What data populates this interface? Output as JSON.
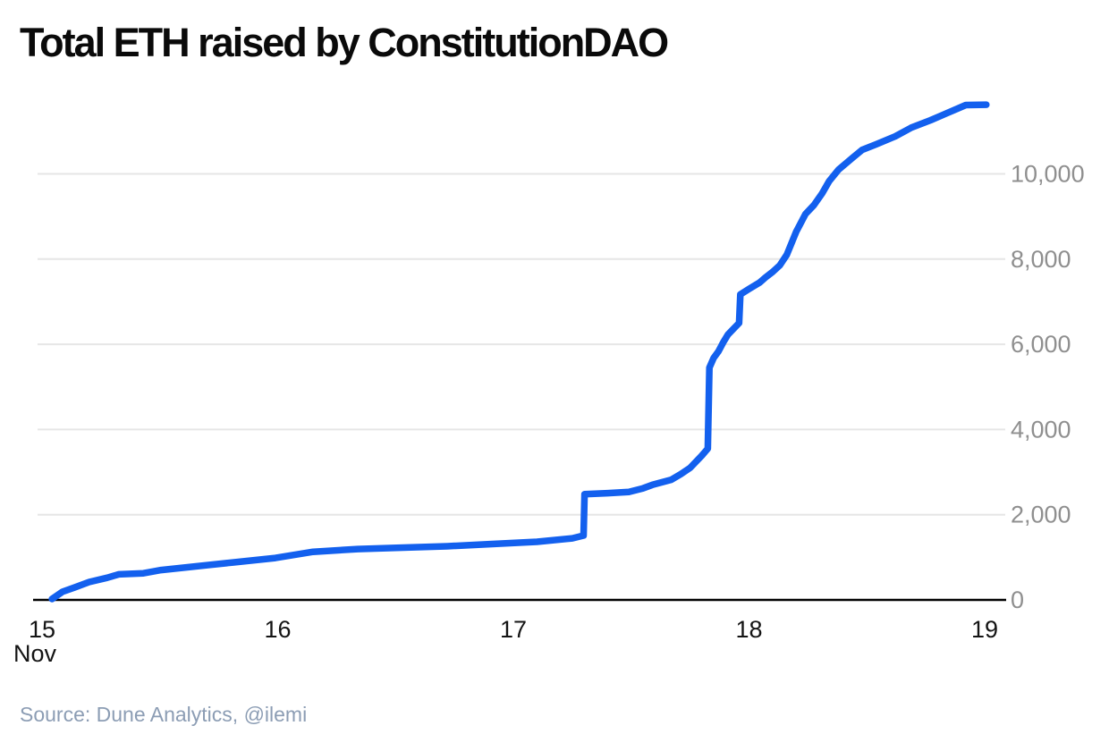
{
  "title": "Total ETH raised by ConstitutionDAO",
  "source": {
    "text": "Source: Dune Analytics, @ilemi"
  },
  "colors": {
    "line": "#1360ee",
    "grid": "#e6e6e6",
    "axis": "#000000",
    "y_label": "#8f8f8f",
    "x_label": "#141414",
    "title": "#0a0a0a",
    "source": "#8c9db4",
    "background": "#ffffff"
  },
  "chart_data": {
    "type": "line",
    "title": "Total ETH raised by ConstitutionDAO",
    "xlabel": "Nov",
    "ylabel": "ETH",
    "x_unit": "day of November",
    "xlim": [
      15,
      19.05
    ],
    "ylim": [
      0,
      11700
    ],
    "grid": "horizontal",
    "legend": "none",
    "month_label": "Nov",
    "x_ticks": [
      {
        "value": 15,
        "label": "15"
      },
      {
        "value": 16,
        "label": "16"
      },
      {
        "value": 17,
        "label": "17"
      },
      {
        "value": 18,
        "label": "18"
      },
      {
        "value": 19,
        "label": "19"
      }
    ],
    "y_ticks": [
      {
        "value": 0,
        "label": "0"
      },
      {
        "value": 2000,
        "label": "2,000"
      },
      {
        "value": 4000,
        "label": "4,000"
      },
      {
        "value": 6000,
        "label": "6,000"
      },
      {
        "value": 8000,
        "label": "8,000"
      },
      {
        "value": 10000,
        "label": "10,000"
      }
    ],
    "series": [
      {
        "name": "Total ETH raised",
        "points": [
          [
            15.042,
            20
          ],
          [
            15.087,
            190
          ],
          [
            15.137,
            290
          ],
          [
            15.2,
            420
          ],
          [
            15.277,
            520
          ],
          [
            15.326,
            600
          ],
          [
            15.43,
            625
          ],
          [
            15.505,
            700
          ],
          [
            15.63,
            775
          ],
          [
            15.81,
            880
          ],
          [
            15.99,
            985
          ],
          [
            16.15,
            1130
          ],
          [
            16.34,
            1195
          ],
          [
            16.55,
            1230
          ],
          [
            16.72,
            1260
          ],
          [
            16.9,
            1310
          ],
          [
            17.1,
            1365
          ],
          [
            17.25,
            1445
          ],
          [
            17.298,
            1510
          ],
          [
            17.302,
            2480
          ],
          [
            17.4,
            2505
          ],
          [
            17.49,
            2535
          ],
          [
            17.55,
            2620
          ],
          [
            17.59,
            2700
          ],
          [
            17.67,
            2820
          ],
          [
            17.71,
            2950
          ],
          [
            17.75,
            3100
          ],
          [
            17.8,
            3390
          ],
          [
            17.825,
            3550
          ],
          [
            17.832,
            5450
          ],
          [
            17.85,
            5680
          ],
          [
            17.87,
            5830
          ],
          [
            17.89,
            6040
          ],
          [
            17.91,
            6225
          ],
          [
            17.935,
            6370
          ],
          [
            17.958,
            6500
          ],
          [
            17.963,
            7170
          ],
          [
            18.0,
            7300
          ],
          [
            18.045,
            7450
          ],
          [
            18.07,
            7570
          ],
          [
            18.1,
            7700
          ],
          [
            18.13,
            7850
          ],
          [
            18.16,
            8100
          ],
          [
            18.2,
            8640
          ],
          [
            18.24,
            9060
          ],
          [
            18.275,
            9265
          ],
          [
            18.31,
            9540
          ],
          [
            18.34,
            9830
          ],
          [
            18.38,
            10100
          ],
          [
            18.44,
            10380
          ],
          [
            18.48,
            10565
          ],
          [
            18.54,
            10695
          ],
          [
            18.62,
            10880
          ],
          [
            18.69,
            11090
          ],
          [
            18.77,
            11260
          ],
          [
            18.84,
            11425
          ],
          [
            18.92,
            11615
          ],
          [
            19.007,
            11625
          ]
        ]
      }
    ]
  }
}
